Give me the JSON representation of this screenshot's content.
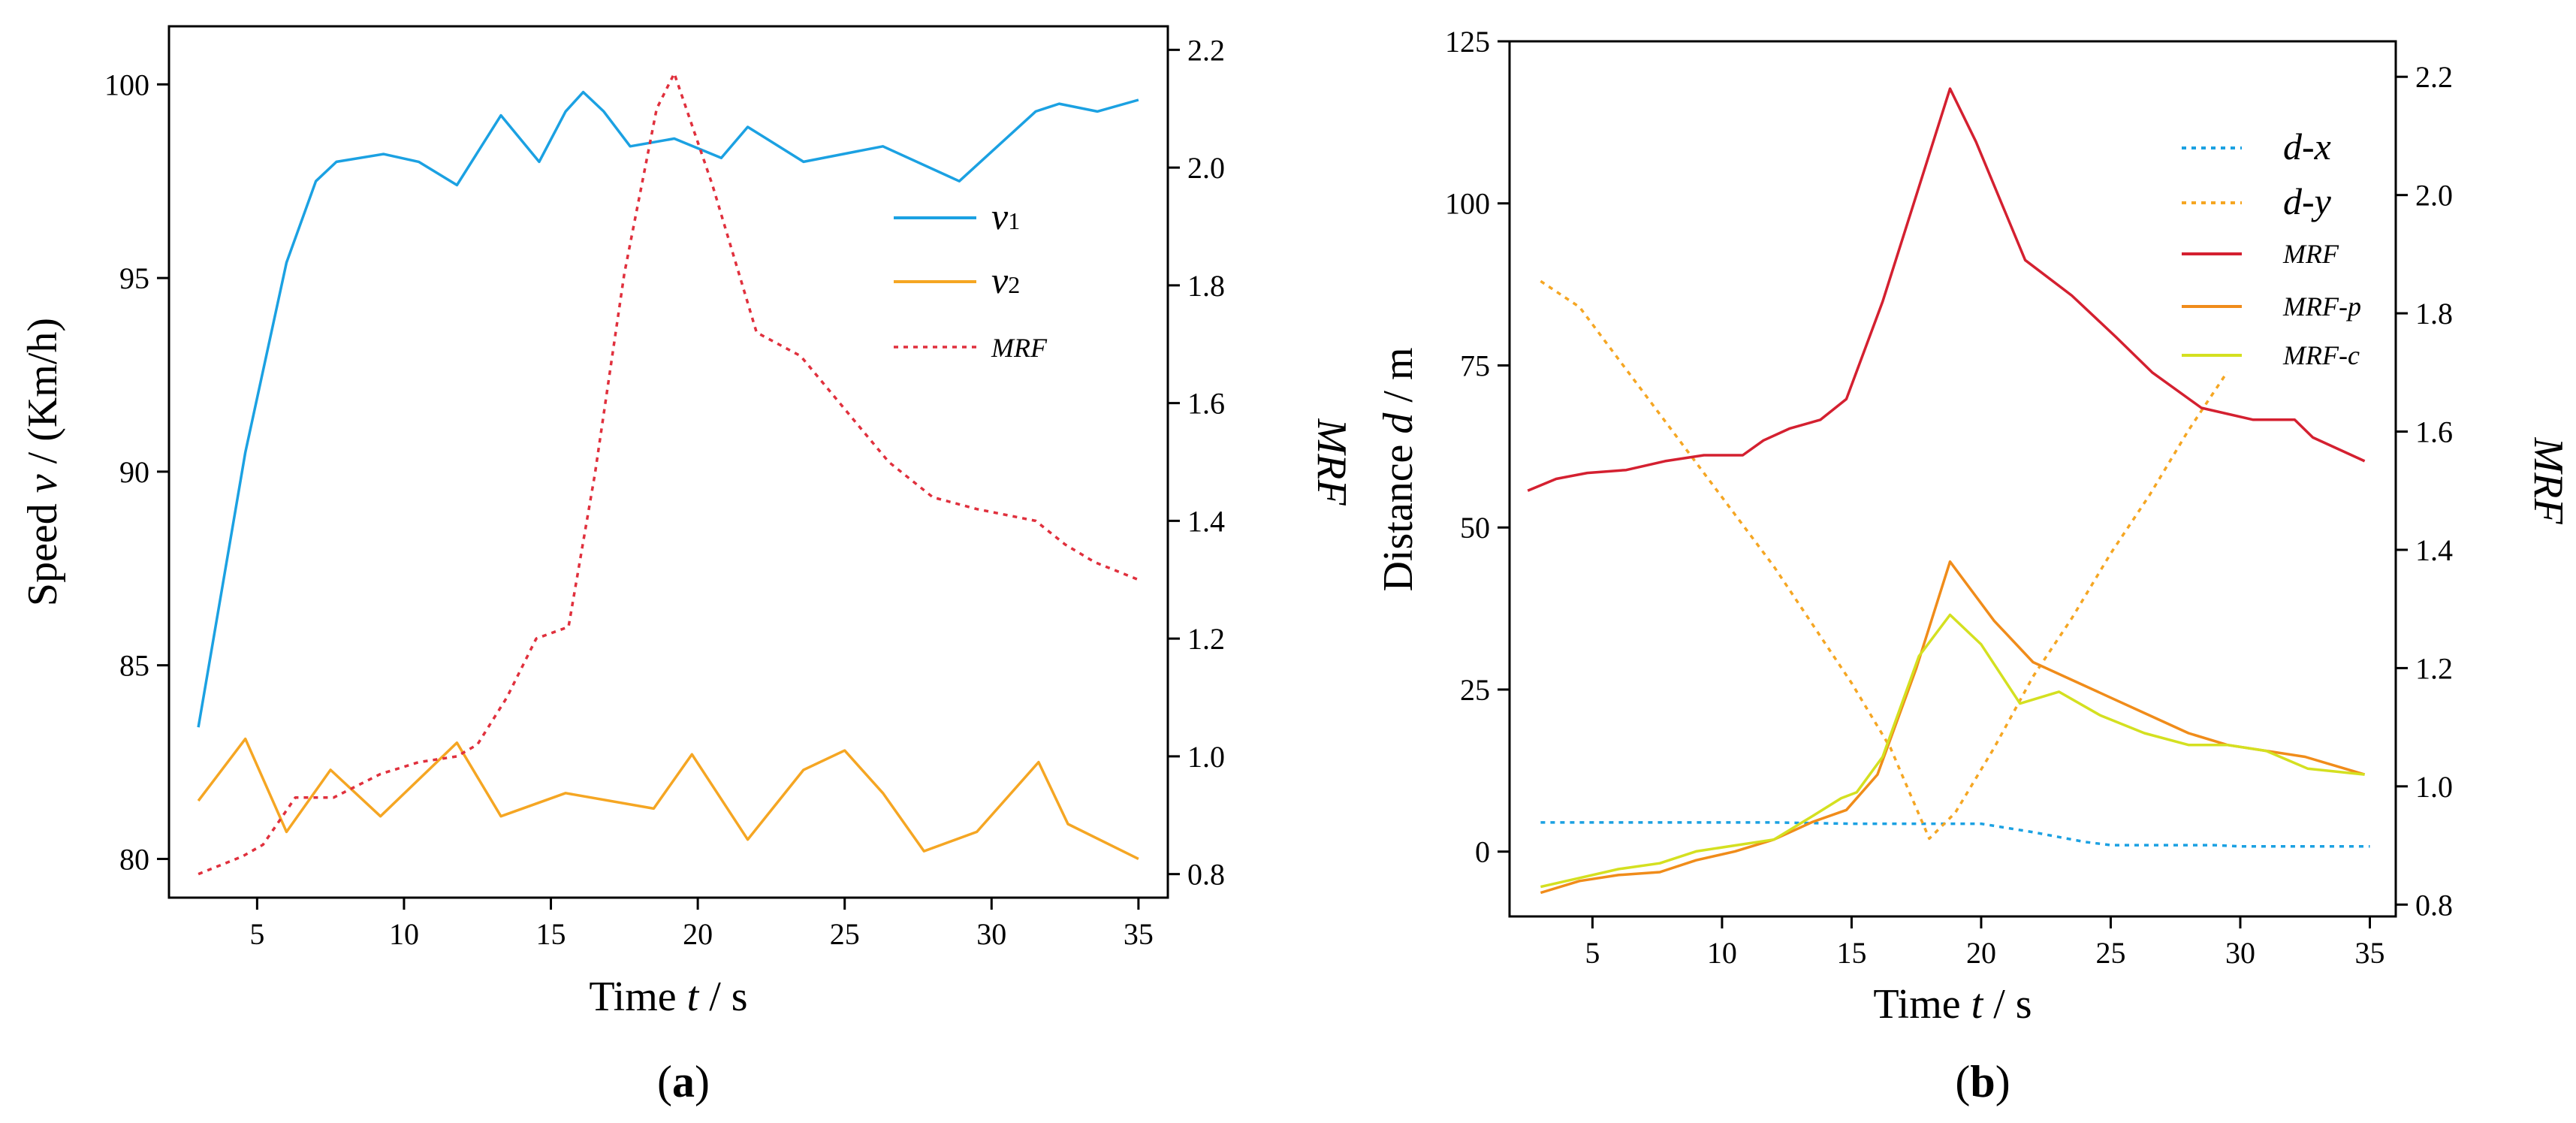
{
  "chart_data": [
    {
      "panel": "a",
      "type": "line",
      "panel_label": "(a)",
      "xlabel_main": "Time",
      "xlabel_var": "t",
      "xlabel_unit": "/ s",
      "ylabel_main": "Speed",
      "ylabel_var": "v",
      "ylabel_unit": "/ (Km/h)",
      "y2label": "MRF",
      "xlim": [
        2,
        36
      ],
      "ylim": [
        79,
        101.5
      ],
      "y2lim": [
        0.76,
        2.24
      ],
      "x_ticks": [
        5,
        10,
        15,
        20,
        25,
        30,
        35
      ],
      "x_tick_labels": [
        "5",
        "10",
        "15",
        "20",
        "25",
        "30",
        "35"
      ],
      "y_ticks": [
        80,
        85,
        90,
        95,
        100
      ],
      "y_tick_labels": [
        "80",
        "85",
        "90",
        "95",
        "100"
      ],
      "y2_ticks": [
        0.8,
        1.0,
        1.2,
        1.4,
        1.6,
        1.8,
        2.0,
        2.2
      ],
      "y2_tick_labels": [
        "0.8",
        "1.0",
        "1.2",
        "1.4",
        "1.6",
        "1.8",
        "2.0",
        "2.2"
      ],
      "series": [
        {
          "name": "v1",
          "legend_main": "v",
          "legend_sub": "1",
          "axis": "left",
          "color": "#1ba1e2",
          "dash": "solid",
          "x": [
            3,
            4.6,
            6,
            7,
            7.7,
            9.3,
            10.5,
            11.8,
            13.3,
            14.6,
            15.5,
            16.1,
            16.8,
            17.7,
            19.2,
            20.8,
            21.7,
            23.6,
            26.3,
            28.9,
            31.5,
            32.3,
            33.6,
            35
          ],
          "y": [
            83.4,
            90.5,
            95.4,
            97.5,
            98.0,
            98.2,
            98.0,
            97.4,
            99.2,
            98.0,
            99.3,
            99.8,
            99.3,
            98.4,
            98.6,
            98.1,
            98.9,
            98.0,
            98.4,
            97.5,
            99.3,
            99.5,
            99.3,
            99.6
          ]
        },
        {
          "name": "v2",
          "legend_main": "v",
          "legend_sub": "2",
          "axis": "left",
          "color": "#f5a623",
          "dash": "solid",
          "x": [
            3,
            4.6,
            6,
            7.5,
            9.2,
            11.8,
            13.3,
            15.5,
            18.5,
            19.8,
            21.7,
            23.6,
            25,
            26.3,
            27.7,
            29.5,
            31.6,
            32.6,
            35
          ],
          "y": [
            81.5,
            83.1,
            80.7,
            82.3,
            81.1,
            83.0,
            81.1,
            81.7,
            81.3,
            82.7,
            80.5,
            82.3,
            82.8,
            81.7,
            80.2,
            80.7,
            82.5,
            80.9,
            80.0
          ]
        },
        {
          "name": "MRF",
          "legend_main": "MRF",
          "axis": "right",
          "color": "#e0303d",
          "dash": "dotted",
          "x": [
            3,
            4.5,
            5.2,
            6.3,
            7.6,
            9.2,
            10.5,
            11.8,
            12.5,
            13.5,
            14.5,
            15.6,
            16.5,
            17.5,
            18.6,
            19.2,
            20.5,
            22,
            23.5,
            25,
            26.5,
            28,
            29.5,
            31.5,
            32.5,
            33.5,
            35
          ],
          "y": [
            0.8,
            0.83,
            0.85,
            0.93,
            0.93,
            0.97,
            0.99,
            1.0,
            1.02,
            1.1,
            1.2,
            1.22,
            1.48,
            1.82,
            2.1,
            2.16,
            1.97,
            1.72,
            1.68,
            1.59,
            1.5,
            1.44,
            1.42,
            1.4,
            1.36,
            1.33,
            1.3
          ]
        }
      ]
    },
    {
      "panel": "b",
      "type": "line",
      "panel_label": "(b)",
      "xlabel_main": "Time",
      "xlabel_var": "t",
      "xlabel_unit": "/ s",
      "ylabel_main": "Distance",
      "ylabel_var": "d",
      "ylabel_unit": "/ m",
      "y2label": "MRF",
      "xlim": [
        1.8,
        36
      ],
      "ylim": [
        -10,
        125
      ],
      "y2lim": [
        0.78,
        2.26
      ],
      "x_ticks": [
        5,
        10,
        15,
        20,
        25,
        30,
        35
      ],
      "x_tick_labels": [
        "5",
        "10",
        "15",
        "20",
        "25",
        "30",
        "35"
      ],
      "y_ticks": [
        0,
        25,
        50,
        75,
        100,
        125
      ],
      "y_tick_labels": [
        "0",
        "25",
        "50",
        "75",
        "100",
        "125"
      ],
      "y2_ticks": [
        0.8,
        1.0,
        1.2,
        1.4,
        1.6,
        1.8,
        2.0,
        2.2
      ],
      "y2_tick_labels": [
        "0.8",
        "1.0",
        "1.2",
        "1.4",
        "1.6",
        "1.8",
        "2.0",
        "2.2"
      ],
      "series": [
        {
          "name": "d-x",
          "legend_main": "d-x",
          "axis": "left",
          "color": "#1ba1e2",
          "dash": "dotted",
          "x": [
            3,
            8,
            12,
            15,
            18,
            20,
            22,
            24,
            25,
            27,
            29,
            30,
            32,
            35
          ],
          "y": [
            4.5,
            4.5,
            4.5,
            4.3,
            4.3,
            4.3,
            3.0,
            1.5,
            1.0,
            1.0,
            1.0,
            0.8,
            0.8,
            0.8
          ]
        },
        {
          "name": "d-y",
          "legend_main": "d-y",
          "axis": "left",
          "color": "#f5a623",
          "dash": "dotted",
          "x": [
            3,
            4.5,
            6,
            7.5,
            9,
            10.5,
            12,
            13.5,
            15,
            16.5,
            18,
            19,
            20.5,
            22,
            23.5,
            25,
            26.5,
            28,
            29.5
          ],
          "y": [
            88,
            84,
            76,
            68,
            60,
            52,
            44,
            35,
            26,
            16,
            2,
            6,
            16,
            27,
            36,
            46,
            55,
            65,
            74
          ]
        },
        {
          "name": "MRF",
          "legend_main": "MRF",
          "axis": "right",
          "color": "#d42030",
          "dash": "solid",
          "x": [
            2.5,
            3.6,
            4.8,
            6.3,
            7.8,
            9.3,
            10.8,
            11.6,
            12.6,
            13.8,
            14.8,
            16.2,
            17.5,
            18.8,
            19.8,
            21.7,
            23.5,
            25.2,
            26.6,
            28.5,
            30.5,
            32.1,
            32.8,
            34.8
          ],
          "y": [
            1.5,
            1.52,
            1.53,
            1.535,
            1.55,
            1.56,
            1.56,
            1.585,
            1.605,
            1.62,
            1.655,
            1.82,
            2.0,
            2.18,
            2.09,
            1.89,
            1.83,
            1.76,
            1.7,
            1.64,
            1.62,
            1.62,
            1.59,
            1.55
          ]
        },
        {
          "name": "MRF-p",
          "legend_main": "MRF-p",
          "axis": "right",
          "color": "#f08c1a",
          "dash": "solid",
          "x": [
            3,
            4.5,
            6,
            7.6,
            9,
            10.5,
            12,
            13.5,
            14.8,
            16,
            17.5,
            18.8,
            20.5,
            22,
            23.5,
            25,
            26.5,
            28,
            29.5,
            31,
            32.5,
            34.8
          ],
          "y": [
            0.82,
            0.84,
            0.85,
            0.855,
            0.875,
            0.89,
            0.91,
            0.94,
            0.96,
            1.02,
            1.2,
            1.38,
            1.28,
            1.21,
            1.18,
            1.15,
            1.12,
            1.09,
            1.07,
            1.06,
            1.05,
            1.02
          ]
        },
        {
          "name": "MRF-c",
          "legend_main": "MRF-c",
          "axis": "right",
          "color": "#d4e020",
          "dash": "solid",
          "x": [
            3,
            4.5,
            6,
            7.6,
            9,
            10.5,
            12,
            13.5,
            14.6,
            15.2,
            16.2,
            17.6,
            18.8,
            20,
            21.5,
            23,
            24.6,
            26.3,
            28,
            29.5,
            31,
            32.6,
            34.8
          ],
          "y": [
            0.83,
            0.845,
            0.86,
            0.87,
            0.89,
            0.9,
            0.91,
            0.95,
            0.98,
            0.99,
            1.05,
            1.22,
            1.29,
            1.24,
            1.14,
            1.16,
            1.12,
            1.09,
            1.07,
            1.07,
            1.06,
            1.03,
            1.02
          ]
        }
      ]
    }
  ]
}
